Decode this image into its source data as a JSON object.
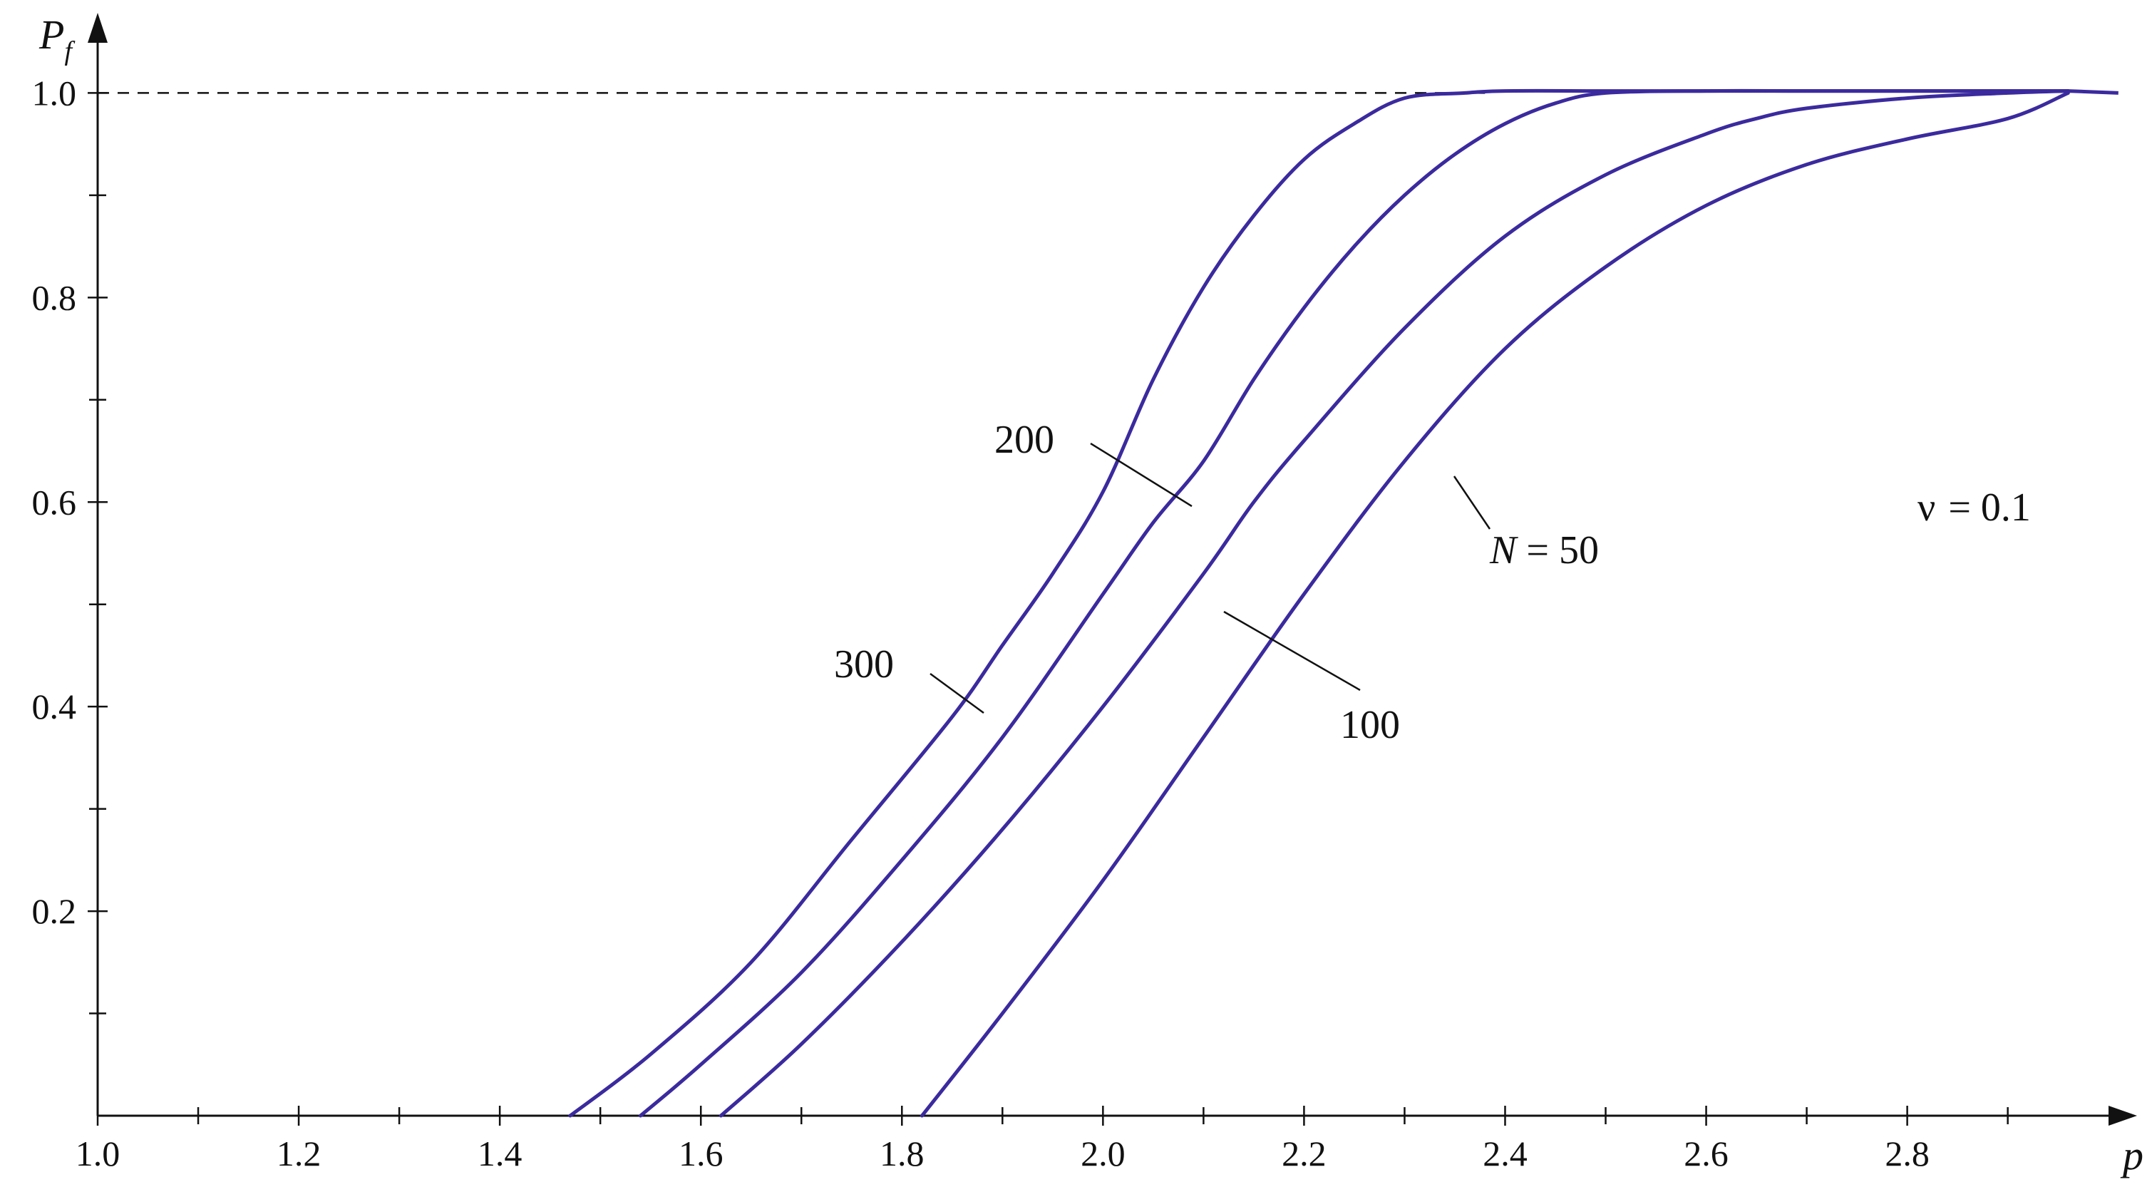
{
  "chart_data": {
    "type": "line",
    "xlabel": "p",
    "ylabel": "P",
    "ylabel_subscript": "f",
    "xlim": [
      1.0,
      3.03
    ],
    "ylim": [
      0,
      1.07
    ],
    "x_ticks": [
      "1.0",
      "1.2",
      "1.4",
      "1.6",
      "1.8",
      "2.0",
      "2.2",
      "2.4",
      "2.6",
      "2.8"
    ],
    "y_ticks": [
      "0.2",
      "0.4",
      "0.6",
      "0.8",
      "1.0"
    ],
    "x_minor_ticks": [
      1.1,
      1.3,
      1.5,
      1.7,
      1.9,
      2.1,
      2.3,
      2.5,
      2.7,
      2.9
    ],
    "y_minor_ticks": [
      0.1,
      0.3,
      0.5,
      0.7,
      0.9
    ],
    "reference_line": {
      "y": 1.0,
      "style": "dashed"
    },
    "annotation": {
      "text_before": "ν",
      "text_after": "= 0.1"
    },
    "line_color": "#3b2a9e",
    "grid": false,
    "series": [
      {
        "name": "300",
        "x": [
          1.47,
          1.55,
          1.65,
          1.75,
          1.85,
          1.9,
          1.95,
          2.0,
          2.05,
          2.1,
          2.15,
          2.2,
          2.25,
          2.3,
          2.36,
          2.4,
          2.5,
          2.6,
          2.7,
          2.8,
          2.96
        ],
        "y": [
          0.0,
          0.06,
          0.15,
          0.27,
          0.39,
          0.46,
          0.53,
          0.61,
          0.72,
          0.81,
          0.88,
          0.935,
          0.97,
          0.995,
          1.0,
          1.002,
          1.002,
          1.002,
          1.002,
          1.002,
          1.002
        ]
      },
      {
        "name": "200",
        "x": [
          1.54,
          1.6,
          1.7,
          1.8,
          1.9,
          2.0,
          2.05,
          2.1,
          2.15,
          2.2,
          2.25,
          2.3,
          2.35,
          2.4,
          2.45,
          2.5,
          2.6,
          2.7,
          2.8,
          2.96
        ],
        "y": [
          0.0,
          0.05,
          0.14,
          0.25,
          0.37,
          0.51,
          0.58,
          0.64,
          0.72,
          0.79,
          0.85,
          0.9,
          0.94,
          0.97,
          0.99,
          1.0,
          1.002,
          1.002,
          1.002,
          1.002
        ]
      },
      {
        "name": "100",
        "x": [
          1.62,
          1.7,
          1.8,
          1.9,
          2.0,
          2.1,
          2.15,
          2.2,
          2.3,
          2.4,
          2.5,
          2.6,
          2.65,
          2.7,
          2.8,
          2.9,
          2.96
        ],
        "y": [
          0.0,
          0.07,
          0.17,
          0.28,
          0.4,
          0.53,
          0.6,
          0.66,
          0.77,
          0.86,
          0.92,
          0.96,
          0.975,
          0.985,
          0.995,
          1.0,
          1.002
        ]
      },
      {
        "name": "N = 50",
        "x": [
          1.82,
          1.9,
          2.0,
          2.1,
          2.2,
          2.3,
          2.4,
          2.5,
          2.6,
          2.7,
          2.8,
          2.9,
          2.96
        ],
        "y": [
          0.0,
          0.1,
          0.23,
          0.37,
          0.51,
          0.64,
          0.75,
          0.83,
          0.89,
          0.93,
          0.955,
          0.975,
          1.0
        ]
      }
    ],
    "tail": {
      "x": [
        2.96,
        3.01
      ],
      "y": [
        1.002,
        1.0
      ]
    },
    "labels": [
      {
        "text": "300",
        "series": "300"
      },
      {
        "text": "200",
        "series": "200"
      },
      {
        "text": "100",
        "series": "100"
      },
      {
        "text_italic": "N",
        "text_rest": "= 50",
        "series": "N = 50"
      }
    ]
  }
}
